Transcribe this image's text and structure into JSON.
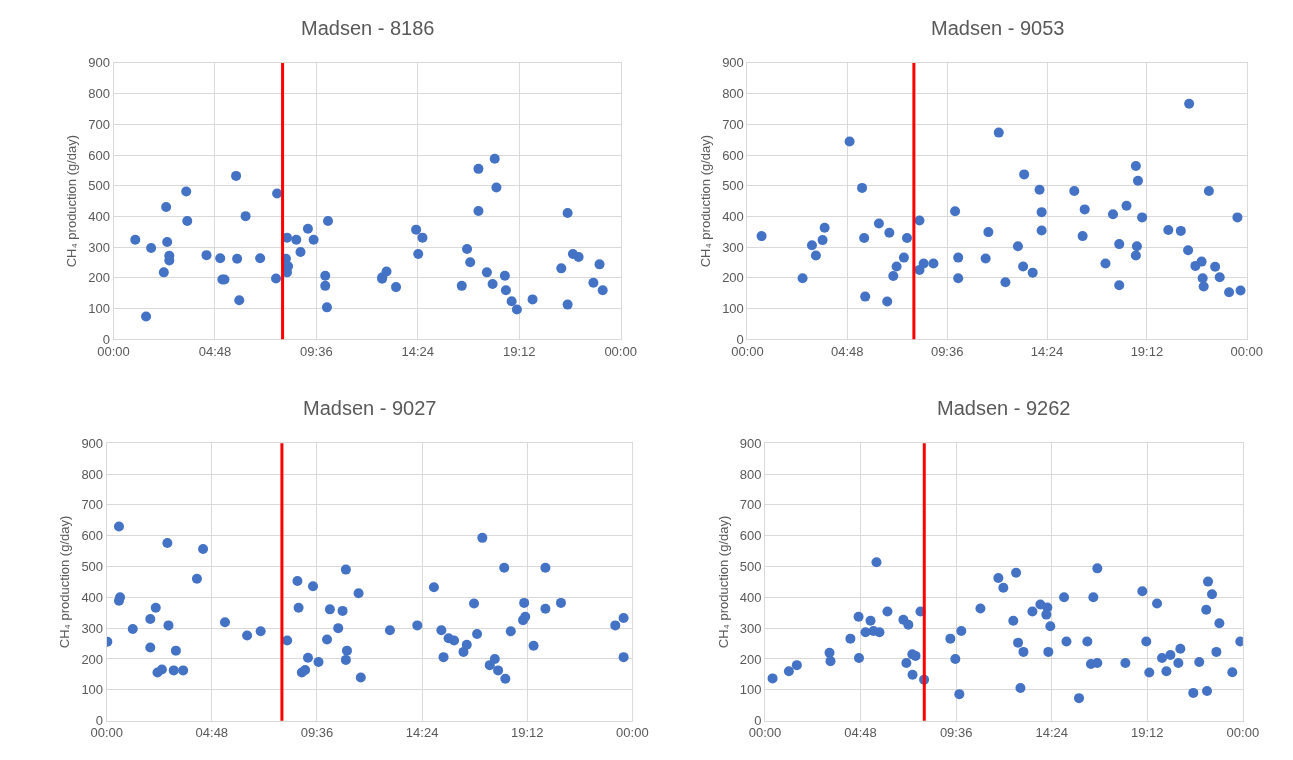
{
  "chart_data": [
    {
      "type": "scatter",
      "title": "Madsen - 8186",
      "ylabel": "CH₄ production (g/day)",
      "color": "#4472c4",
      "marker": "circle",
      "grid": true,
      "xlim": [
        0,
        24
      ],
      "xticks": [
        {
          "value": 0,
          "label": "00:00"
        },
        {
          "value": 4.8,
          "label": "04:48"
        },
        {
          "value": 9.6,
          "label": "09:36"
        },
        {
          "value": 14.4,
          "label": "14:24"
        },
        {
          "value": 19.2,
          "label": "19:12"
        },
        {
          "value": 24,
          "label": "00:00"
        }
      ],
      "ylim": [
        0,
        900
      ],
      "yticks": [
        0,
        100,
        200,
        300,
        400,
        500,
        600,
        700,
        800,
        900
      ],
      "ref_lines": [
        {
          "axis": "x",
          "value": 8,
          "color": "#ff0000"
        }
      ],
      "x": [
        1.03,
        1.54,
        1.78,
        2.38,
        2.49,
        2.54,
        2.64,
        2.64,
        3.44,
        3.49,
        4.4,
        5.05,
        5.15,
        5.25,
        5.8,
        5.85,
        5.95,
        6.25,
        6.94,
        7.69,
        7.74,
        8.16,
        8.21,
        8.26,
        8.21,
        8.65,
        8.85,
        9.2,
        9.47,
        10.02,
        10.02,
        10.1,
        10.15,
        12.71,
        12.72,
        12.92,
        13.37,
        14.32,
        14.62,
        14.42,
        16.48,
        16.73,
        16.88,
        17.27,
        17.27,
        17.67,
        17.94,
        18.04,
        18.12,
        18.52,
        18.57,
        18.84,
        19.09,
        19.83,
        21.19,
        21.49,
        21.49,
        21.74,
        22.01,
        22.71,
        23.0,
        23.15
      ],
      "values": [
        324,
        74,
        297,
        218,
        431,
        317,
        272,
        257,
        481,
        385,
        274,
        264,
        195,
        195,
        532,
        262,
        127,
        401,
        264,
        198,
        475,
        262,
        331,
        238,
        218,
        324,
        284,
        360,
        324,
        207,
        174,
        104,
        385,
        197,
        202,
        221,
        170,
        357,
        331,
        278,
        174,
        294,
        251,
        555,
        418,
        218,
        180,
        588,
        494,
        207,
        160,
        124,
        97,
        130,
        231,
        411,
        113,
        278,
        268,
        184,
        244,
        160
      ]
    },
    {
      "type": "scatter",
      "title": "Madsen - 9053",
      "ylabel": "CH₄ production (g/day)",
      "color": "#4472c4",
      "marker": "circle",
      "grid": true,
      "xlim": [
        0,
        24
      ],
      "xticks": [
        {
          "value": 0,
          "label": "00:00"
        },
        {
          "value": 4.8,
          "label": "04:48"
        },
        {
          "value": 9.6,
          "label": "09:36"
        },
        {
          "value": 14.4,
          "label": "14:24"
        },
        {
          "value": 19.2,
          "label": "19:12"
        },
        {
          "value": 24,
          "label": "00:00"
        }
      ],
      "ylim": [
        0,
        900
      ],
      "yticks": [
        0,
        100,
        200,
        300,
        400,
        500,
        600,
        700,
        800,
        900
      ],
      "ref_lines": [
        {
          "axis": "x",
          "value": 8,
          "color": "#ff0000"
        }
      ],
      "x": [
        0.68,
        2.65,
        3.1,
        3.29,
        3.61,
        3.71,
        4.91,
        5.51,
        5.61,
        5.66,
        6.32,
        6.72,
        6.82,
        7.01,
        7.17,
        7.52,
        7.67,
        8.27,
        8.27,
        8.47,
        8.94,
        9.98,
        10.13,
        10.13,
        11.45,
        11.58,
        12.08,
        12.4,
        13.0,
        13.25,
        13.3,
        13.71,
        14.04,
        14.14,
        14.14,
        15.71,
        16.11,
        16.21,
        17.21,
        17.57,
        17.87,
        17.87,
        18.22,
        18.67,
        18.67,
        18.72,
        18.77,
        18.97,
        20.23,
        20.83,
        21.18,
        21.23,
        21.53,
        21.83,
        21.88,
        21.93,
        22.18,
        22.48,
        22.7,
        23.15,
        23.55,
        23.7
      ],
      "values": [
        336,
        199,
        306,
        273,
        323,
        363,
        644,
        493,
        330,
        139,
        377,
        123,
        347,
        206,
        237,
        266,
        330,
        387,
        226,
        247,
        247,
        417,
        266,
        199,
        263,
        349,
        673,
        186,
        303,
        237,
        537,
        217,
        487,
        414,
        354,
        483,
        336,
        423,
        247,
        407,
        310,
        176,
        435,
        564,
        273,
        303,
        516,
        397,
        356,
        353,
        290,
        767,
        239,
        253,
        199,
        172,
        483,
        236,
        202,
        153,
        397,
        159
      ]
    },
    {
      "type": "scatter",
      "title": "Madsen - 9027",
      "ylabel": "CH₄ production (g/day)",
      "color": "#4472c4",
      "marker": "circle",
      "grid": true,
      "xlim": [
        0,
        24
      ],
      "xticks": [
        {
          "value": 0,
          "label": "00:00"
        },
        {
          "value": 4.8,
          "label": "04:48"
        },
        {
          "value": 9.6,
          "label": "09:36"
        },
        {
          "value": 14.4,
          "label": "14:24"
        },
        {
          "value": 19.2,
          "label": "19:12"
        },
        {
          "value": 24,
          "label": "00:00"
        }
      ],
      "ylim": [
        0,
        900
      ],
      "yticks": [
        0,
        100,
        200,
        300,
        400,
        500,
        600,
        700,
        800,
        900
      ],
      "ref_lines": [
        {
          "axis": "x",
          "value": 8,
          "color": "#ff0000"
        }
      ],
      "x": [
        0.03,
        0.56,
        0.56,
        0.61,
        1.19,
        1.99,
        1.99,
        2.24,
        2.32,
        2.52,
        2.77,
        2.82,
        3.06,
        3.16,
        3.49,
        4.12,
        4.4,
        5.4,
        6.41,
        7.03,
        8.24,
        8.71,
        8.76,
        8.91,
        9.06,
        9.19,
        9.42,
        9.67,
        10.06,
        10.19,
        10.57,
        10.77,
        10.92,
        10.97,
        10.92,
        11.5,
        11.6,
        12.93,
        14.18,
        14.94,
        15.28,
        15.38,
        15.61,
        15.86,
        16.29,
        16.44,
        16.77,
        16.91,
        17.15,
        17.49,
        17.72,
        17.87,
        18.15,
        18.2,
        18.45,
        19.01,
        19.06,
        19.11,
        19.49,
        20.03,
        20.03,
        20.74,
        23.22,
        23.6,
        23.6
      ],
      "values": [
        256,
        630,
        389,
        400,
        297,
        330,
        237,
        366,
        156,
        166,
        576,
        309,
        163,
        227,
        163,
        460,
        557,
        319,
        276,
        290,
        260,
        453,
        366,
        156,
        164,
        204,
        436,
        190,
        263,
        361,
        300,
        356,
        490,
        227,
        197,
        413,
        140,
        293,
        309,
        433,
        293,
        206,
        267,
        260,
        223,
        246,
        380,
        281,
        593,
        180,
        200,
        163,
        496,
        136,
        290,
        326,
        382,
        337,
        243,
        496,
        363,
        382,
        309,
        333,
        206
      ]
    },
    {
      "type": "scatter",
      "title": "Madsen - 9262",
      "ylabel": "CH₄ production (g/day)",
      "color": "#4472c4",
      "marker": "circle",
      "grid": true,
      "xlim": [
        0,
        24
      ],
      "xticks": [
        {
          "value": 0,
          "label": "00:00"
        },
        {
          "value": 4.8,
          "label": "04:48"
        },
        {
          "value": 9.6,
          "label": "09:36"
        },
        {
          "value": 14.4,
          "label": "14:24"
        },
        {
          "value": 19.2,
          "label": "19:12"
        },
        {
          "value": 24,
          "label": "00:00"
        }
      ],
      "ylim": [
        0,
        900
      ],
      "yticks": [
        0,
        100,
        200,
        300,
        400,
        500,
        600,
        700,
        800,
        900
      ],
      "ref_lines": [
        {
          "axis": "x",
          "value": 8,
          "color": "#ff0000"
        }
      ],
      "x": [
        0.38,
        1.2,
        1.6,
        3.24,
        3.29,
        4.29,
        4.7,
        4.72,
        5.05,
        5.3,
        5.45,
        5.6,
        5.75,
        6.15,
        6.95,
        7.1,
        7.2,
        7.4,
        7.56,
        7.41,
        7.81,
        7.99,
        9.31,
        9.56,
        9.76,
        9.86,
        10.82,
        11.72,
        11.97,
        12.47,
        12.61,
        12.71,
        12.83,
        12.98,
        13.43,
        13.83,
        14.18,
        14.13,
        14.33,
        14.23,
        15.02,
        15.14,
        15.77,
        16.19,
        16.37,
        16.49,
        16.69,
        16.69,
        18.1,
        18.95,
        19.15,
        19.3,
        19.69,
        19.94,
        20.16,
        20.36,
        20.76,
        20.86,
        21.51,
        21.81,
        22.16,
        22.2,
        22.25,
        22.45,
        22.67,
        22.82,
        23.47,
        23.87
      ],
      "values": [
        137,
        160,
        180,
        220,
        193,
        266,
        337,
        203,
        287,
        324,
        291,
        514,
        287,
        354,
        327,
        187,
        311,
        215,
        210,
        149,
        354,
        133,
        266,
        200,
        86,
        291,
        364,
        463,
        431,
        324,
        480,
        253,
        106,
        223,
        354,
        377,
        367,
        344,
        306,
        223,
        400,
        257,
        73,
        257,
        184,
        400,
        494,
        187,
        187,
        420,
        257,
        156,
        380,
        203,
        160,
        213,
        187,
        233,
        90,
        190,
        360,
        96,
        451,
        410,
        223,
        316,
        157,
        257
      ]
    }
  ]
}
